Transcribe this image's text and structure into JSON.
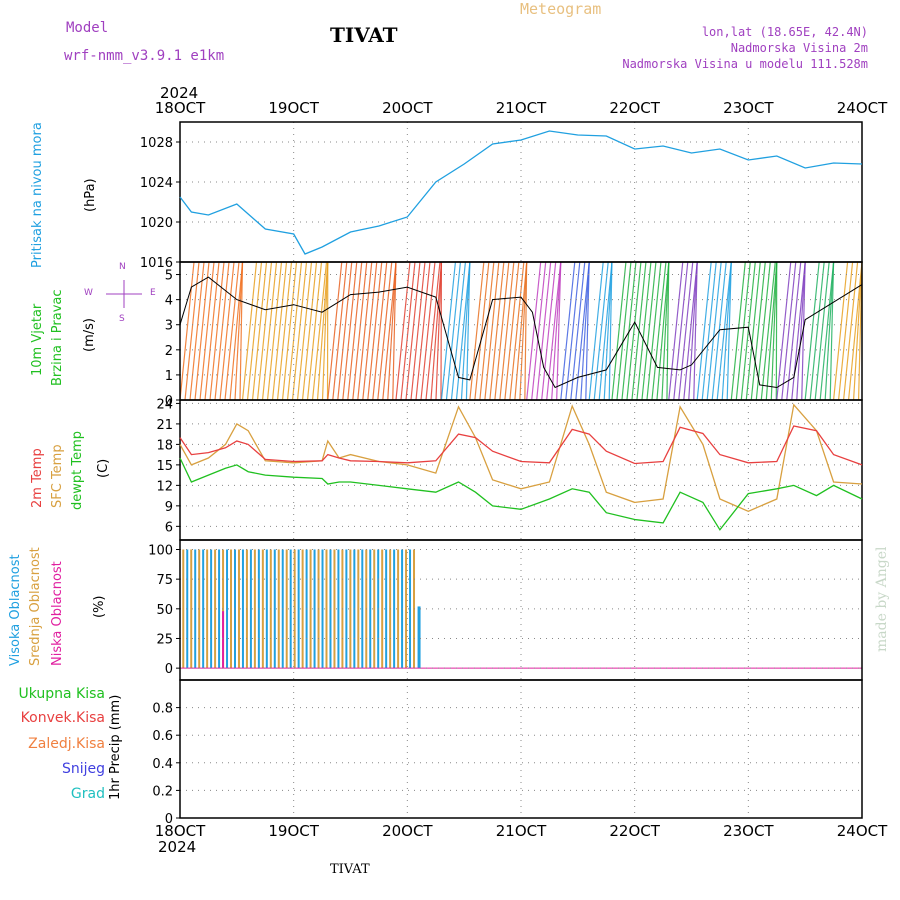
{
  "header": {
    "model_label": "Model",
    "model_name": "wrf-nmm_v3.9.1  e1km",
    "city": "TIVAT",
    "meteogram": "Meteogram",
    "lonlat": "lon,lat (18.65E, 42.4N)",
    "elevation": "Nadmorska Visina 2m",
    "model_elevation": "Nadmorska Visina u modelu 111.528m",
    "year_top": "2024",
    "year_bottom": "2024",
    "footer_city": "TIVAT",
    "credit": "made by Angel"
  },
  "time_axis": {
    "labels": [
      "18OCT",
      "19OCT",
      "20OCT",
      "21OCT",
      "22OCT",
      "23OCT",
      "24OCT"
    ]
  },
  "colors": {
    "pressure": "#20a0e0",
    "temp2m": "#e84040",
    "sfc_temp": "#d8a040",
    "dewpt": "#20c020",
    "high_cloud": "#20a0e0",
    "mid_cloud": "#d8a040",
    "low_cloud": "#e020a0",
    "model_text": "#a040c0",
    "meteogram_text": "#e8c080"
  },
  "panels": {
    "pressure": {
      "label": "Pritisak na nivou mora",
      "unit": "(hPa)",
      "ticks": [
        "1016",
        "1020",
        "1024",
        "1028"
      ]
    },
    "wind": {
      "label1": "10m Vjetar",
      "label2": "Brzina i Pravac",
      "unit": "(m/s)",
      "ticks": [
        "0",
        "1",
        "2",
        "3",
        "4",
        "5"
      ],
      "compass": {
        "n": "N",
        "s": "S",
        "e": "E",
        "w": "W"
      }
    },
    "temp": {
      "label1": "2m Temp",
      "label2": "SFC Temp",
      "label3": "dewpt Temp",
      "unit": "(C)",
      "ticks": [
        "6",
        "9",
        "12",
        "15",
        "18",
        "21",
        "24"
      ]
    },
    "cloud": {
      "label1": "Visoka Oblacnost",
      "label2": "Srednja Oblacnost",
      "label3": "Niska Oblacnost",
      "unit": "(%)",
      "ticks": [
        "0",
        "25",
        "50",
        "75",
        "100"
      ]
    },
    "precip": {
      "legend": [
        "Ukupna Kisa",
        "Konvek.Kisa",
        "Zaledj.Kisa",
        "Snijeg",
        "Grad"
      ],
      "legend_colors": [
        "#20c020",
        "#e84040",
        "#f08040",
        "#4040e0",
        "#20c0c0"
      ],
      "unit": "1hr Precip (mm)",
      "ticks": [
        "0",
        "0.2",
        "0.4",
        "0.6",
        "0.8"
      ]
    }
  },
  "chart_data": [
    {
      "type": "line",
      "title": "",
      "ylabel": "Pritisak na nivou mora (hPa)",
      "ylim": [
        1016,
        1030
      ],
      "x": [
        0,
        0.1,
        0.25,
        0.5,
        0.75,
        1,
        1.1,
        1.25,
        1.5,
        1.75,
        2,
        2.25,
        2.5,
        2.75,
        3,
        3.25,
        3.5,
        3.75,
        4,
        4.25,
        4.5,
        4.75,
        5,
        5.25,
        5.5,
        5.75,
        6
      ],
      "series": [
        {
          "name": "Pritisak na nivou mora",
          "values": [
            1022.5,
            1021,
            1020.7,
            1021.8,
            1019.3,
            1018.8,
            1016.8,
            1017.5,
            1019,
            1019.6,
            1020.5,
            1024,
            1025.8,
            1027.8,
            1028.2,
            1029.1,
            1028.7,
            1028.6,
            1027.3,
            1027.6,
            1026.9,
            1027.3,
            1026.2,
            1026.6,
            1025.4,
            1025.9,
            1025.8
          ]
        }
      ]
    },
    {
      "type": "line",
      "title": "",
      "ylabel": "10m Vjetar Brzina i Pravac (m/s)",
      "ylim": [
        0,
        5.5
      ],
      "x": [
        0,
        0.1,
        0.25,
        0.5,
        0.75,
        1,
        1.25,
        1.5,
        1.75,
        2,
        2.25,
        2.35,
        2.45,
        2.55,
        2.75,
        3,
        3.1,
        3.2,
        3.3,
        3.5,
        3.75,
        4,
        4.2,
        4.4,
        4.5,
        4.75,
        5,
        5.1,
        5.25,
        5.4,
        5.5,
        6
      ],
      "series": [
        {
          "name": "10m Vjetar",
          "values": [
            3.0,
            4.5,
            4.9,
            4.0,
            3.6,
            3.8,
            3.5,
            4.2,
            4.3,
            4.5,
            4.1,
            2.5,
            0.9,
            0.8,
            4.0,
            4.1,
            3.5,
            1.3,
            0.5,
            0.9,
            1.2,
            3.1,
            1.3,
            1.2,
            1.4,
            2.8,
            2.9,
            0.6,
            0.5,
            0.9,
            3.2,
            4.6
          ]
        }
      ]
    },
    {
      "type": "line",
      "title": "",
      "ylabel": "(C)",
      "ylim": [
        4,
        24.5
      ],
      "x": [
        0,
        0.1,
        0.25,
        0.4,
        0.5,
        0.6,
        0.75,
        1,
        1.25,
        1.3,
        1.4,
        1.5,
        1.75,
        2,
        2.25,
        2.45,
        2.6,
        2.75,
        3,
        3.25,
        3.45,
        3.6,
        3.75,
        4,
        4.25,
        4.4,
        4.6,
        4.75,
        5,
        5.25,
        5.4,
        5.6,
        5.75,
        6
      ],
      "series": [
        {
          "name": "2m Temp",
          "values": [
            19,
            16.5,
            16.8,
            17.5,
            18.5,
            18,
            15.8,
            15.5,
            15.6,
            16.5,
            16,
            15.6,
            15.5,
            15.3,
            15.6,
            19.5,
            19,
            17,
            15.5,
            15.3,
            20.2,
            19.5,
            17,
            15.2,
            15.5,
            20.5,
            19.6,
            16.5,
            15.3,
            15.5,
            20.7,
            20,
            16.5,
            15
          ]
        },
        {
          "name": "SFC Temp",
          "values": [
            18,
            15,
            16,
            18,
            21,
            20,
            15.6,
            15.3,
            15.6,
            18.5,
            16,
            16.5,
            15.5,
            15,
            13.8,
            23.5,
            19,
            12.8,
            11.5,
            12.5,
            23.6,
            18,
            11,
            9.5,
            10,
            23.5,
            18,
            10,
            8.2,
            10,
            23.8,
            20,
            12.5,
            12.2
          ]
        },
        {
          "name": "dewpt Temp",
          "values": [
            16,
            12.5,
            13.5,
            14.5,
            15,
            14,
            13.5,
            13.2,
            13,
            12.2,
            12.5,
            12.5,
            12,
            11.5,
            11,
            12.5,
            11,
            9,
            8.5,
            10,
            11.5,
            11,
            8,
            7,
            6.5,
            11,
            9.5,
            5.5,
            10.8,
            11.5,
            12,
            10.5,
            12,
            10
          ]
        }
      ]
    },
    {
      "type": "bar",
      "title": "",
      "ylabel": "(%)",
      "ylim": [
        0,
        100
      ],
      "note_x": "fraction of days since 18OCT",
      "x_range": [
        0.02,
        2.1
      ],
      "series": [
        {
          "name": "Visoka Oblacnost",
          "values_range": [
            0,
            100
          ]
        },
        {
          "name": "Srednja Oblacnost",
          "values_range": [
            0,
            100
          ]
        },
        {
          "name": "Niska Oblacnost",
          "values_range": [
            0,
            48
          ]
        }
      ]
    },
    {
      "type": "bar",
      "title": "",
      "ylabel": "1hr Precip (mm)",
      "ylim": [
        0,
        1.0
      ],
      "series": [
        {
          "name": "Ukupna Kisa",
          "values": [
            0
          ]
        },
        {
          "name": "Konvek.Kisa",
          "values": [
            0
          ]
        },
        {
          "name": "Zaledj.Kisa",
          "values": [
            0
          ]
        },
        {
          "name": "Snijeg",
          "values": [
            0
          ]
        },
        {
          "name": "Grad",
          "values": [
            0
          ]
        }
      ]
    }
  ]
}
